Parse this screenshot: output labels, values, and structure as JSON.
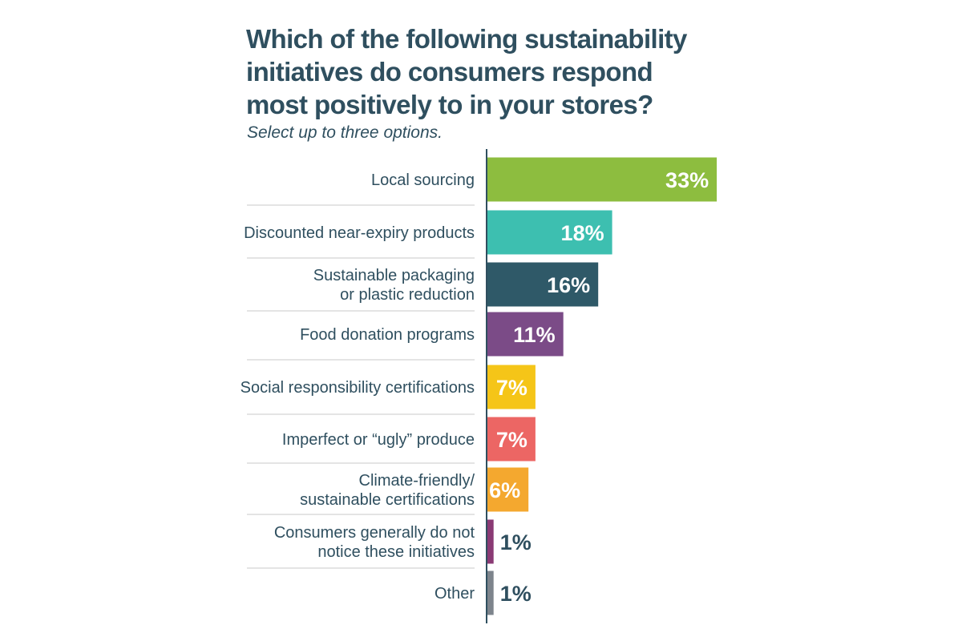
{
  "chart_data": {
    "type": "bar",
    "orientation": "horizontal",
    "title": "Which of the following sustainability initiatives do consumers respond most positively to in your stores?",
    "subtitle": "Select up to three options.",
    "value_suffix": "%",
    "categories": [
      [
        "Local sourcing"
      ],
      [
        "Discounted near-expiry products"
      ],
      [
        "Sustainable packaging",
        "or plastic reduction"
      ],
      [
        "Food donation programs"
      ],
      [
        "Social responsibility certifications"
      ],
      [
        "Imperfect or “ugly” produce"
      ],
      [
        "Climate-friendly/",
        "sustainable certifications"
      ],
      [
        "Consumers generally do not",
        "notice these initiatives"
      ],
      [
        "Other"
      ]
    ],
    "values": [
      33,
      18,
      16,
      11,
      7,
      7,
      6,
      1,
      1
    ],
    "data_labels": [
      "33%",
      "18%",
      "16%",
      "11%",
      "7%",
      "7%",
      "6%",
      "1%",
      "1%"
    ],
    "colors": [
      "#8dbd3f",
      "#3dbfb0",
      "#2f5968",
      "#7b4b87",
      "#f5c518",
      "#ec6664",
      "#f4a82f",
      "#8a3a74",
      "#7d848c"
    ],
    "label_color": "#2f4f5f",
    "axis_color": "#2f4f5f",
    "separator_color": "#d3d3d3"
  }
}
